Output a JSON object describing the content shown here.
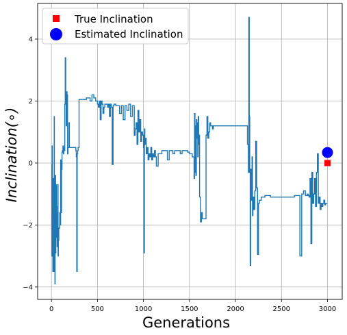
{
  "chart_data": {
    "type": "line",
    "xlabel": "Generations",
    "ylabel": "Inclination(∘)",
    "xlim": [
      -150,
      3160
    ],
    "ylim": [
      -4.4,
      5.15
    ],
    "xticks": [
      0,
      500,
      1000,
      1500,
      2000,
      2500,
      3000
    ],
    "yticks": [
      -4,
      -2,
      0,
      2,
      4
    ],
    "grid": true,
    "legend_position": "top-left",
    "legend": [
      {
        "label": "True Inclination",
        "marker": "square",
        "color": "#ff0000"
      },
      {
        "label": "Estimated Inclination",
        "marker": "circle",
        "color": "#0000ff"
      }
    ],
    "series": [
      {
        "color": "#1f77b4",
        "x": [
          0,
          5,
          8,
          10,
          12,
          15,
          18,
          20,
          22,
          25,
          28,
          30,
          32,
          35,
          38,
          40,
          42,
          45,
          48,
          50,
          52,
          55,
          58,
          60,
          62,
          65,
          68,
          70,
          72,
          75,
          78,
          80,
          85,
          90,
          95,
          100,
          105,
          110,
          115,
          120,
          125,
          130,
          135,
          140,
          145,
          150,
          155,
          160,
          165,
          170,
          175,
          180,
          190,
          195,
          200,
          205,
          210,
          215,
          220,
          225,
          230,
          235,
          240,
          245,
          250,
          255,
          260,
          265,
          270,
          275,
          280,
          285,
          290,
          300,
          320,
          330,
          335,
          340,
          350,
          360,
          380,
          400,
          420,
          440,
          460,
          480,
          500,
          510,
          520,
          530,
          540,
          550,
          560,
          570,
          580,
          600,
          610,
          620,
          630,
          640,
          650,
          660,
          670,
          680,
          700,
          720,
          740,
          760,
          780,
          800,
          820,
          840,
          860,
          880,
          900,
          910,
          920,
          930,
          940,
          950,
          960,
          970,
          980,
          990,
          1000,
          1005,
          1010,
          1015,
          1020,
          1030,
          1040,
          1050,
          1060,
          1070,
          1080,
          1090,
          1100,
          1110,
          1120,
          1130,
          1140,
          1160,
          1180,
          1200,
          1220,
          1240,
          1260,
          1280,
          1300,
          1320,
          1340,
          1360,
          1380,
          1400,
          1420,
          1440,
          1460,
          1480,
          1500,
          1520,
          1530,
          1540,
          1545,
          1550,
          1555,
          1560,
          1565,
          1570,
          1575,
          1580,
          1585,
          1590,
          1595,
          1600,
          1605,
          1610,
          1620,
          1630,
          1640,
          1650,
          1660,
          1670,
          1680,
          1690,
          1700,
          1710,
          1720,
          1730,
          1740,
          1750,
          1760,
          1780,
          1800,
          1820,
          1840,
          1860,
          1880,
          1900,
          1920,
          1940,
          1960,
          1980,
          2000,
          2020,
          2040,
          2060,
          2080,
          2100,
          2110,
          2120,
          2130,
          2140,
          2145,
          2150,
          2155,
          2160,
          2165,
          2170,
          2175,
          2180,
          2185,
          2190,
          2200,
          2210,
          2220,
          2230,
          2240,
          2250,
          2260,
          2270,
          2280,
          2290,
          2300,
          2320,
          2340,
          2360,
          2380,
          2400,
          2420,
          2440,
          2460,
          2480,
          2500,
          2520,
          2540,
          2560,
          2580,
          2600,
          2620,
          2640,
          2660,
          2680,
          2700,
          2720,
          2740,
          2760,
          2780,
          2790,
          2800,
          2810,
          2820,
          2830,
          2840,
          2850,
          2860,
          2870,
          2880,
          2890,
          2900,
          2910,
          2920,
          2930,
          2940,
          2950,
          2960,
          2970,
          2980,
          2990,
          3000
        ],
        "y": [
          -0.05,
          -3.0,
          0.55,
          -2.6,
          -1.3,
          -3.5,
          -1.0,
          -0.5,
          -2.8,
          -1.9,
          -3.5,
          1.5,
          -3.2,
          -1.9,
          -3.9,
          -2.0,
          -0.4,
          -2.9,
          -1.2,
          -2.4,
          -0.7,
          -1.4,
          -2.3,
          -2.0,
          -2.7,
          -1.6,
          -2.1,
          -0.7,
          -3.0,
          -2.2,
          -2.5,
          -2.1,
          -2.1,
          -1.6,
          -2.0,
          0.1,
          -1.6,
          -0.2,
          0.35,
          0.4,
          0.55,
          0.3,
          0.5,
          0.4,
          1.9,
          3.4,
          2.0,
          1.2,
          2.3,
          2.2,
          0.3,
          0.5,
          1.3,
          0.5,
          0.5,
          0.5,
          0.5,
          0.5,
          0.5,
          0.5,
          0.5,
          0.5,
          0.5,
          0.5,
          0.5,
          0.5,
          0.5,
          0.4,
          0.2,
          -3.5,
          0.3,
          0.4,
          0.5,
          2.05,
          2.05,
          2.05,
          2.05,
          2.05,
          2.05,
          2.05,
          2.1,
          2.1,
          2.0,
          2.2,
          2.1,
          2.0,
          1.9,
          1.8,
          2.0,
          1.4,
          2.0,
          1.9,
          1.6,
          1.8,
          1.9,
          1.9,
          1.8,
          1.9,
          1.5,
          1.9,
          1.8,
          -0.05,
          1.85,
          1.9,
          1.85,
          1.85,
          1.6,
          1.85,
          1.4,
          1.85,
          1.7,
          1.9,
          1.5,
          1.85,
          0.9,
          1.1,
          1.3,
          0.6,
          1.7,
          1.0,
          1.4,
          0.7,
          1.0,
          0.9,
          0.5,
          -2.9,
          1.1,
          0.6,
          0.8,
          0.3,
          0.5,
          0.1,
          0.3,
          0.2,
          0.5,
          0.1,
          0.3,
          0.2,
          0.4,
          0.2,
          -0.1,
          0.3,
          0.3,
          0.4,
          0.4,
          0.4,
          0.1,
          0.4,
          0.4,
          0.3,
          0.4,
          0.4,
          0.4,
          0.3,
          0.4,
          0.4,
          0.4,
          0.35,
          0.3,
          0.3,
          0.2,
          0.2,
          0.2,
          -0.5,
          1.6,
          -0.3,
          1.2,
          -0.4,
          1.4,
          0.8,
          1.3,
          0.2,
          1.5,
          0.6,
          0.9,
          -1.1,
          -1.9,
          -1.6,
          -1.8,
          -1.8,
          -1.8,
          -1.8,
          0.9,
          1.5,
          0.8,
          1.0,
          1.3,
          1.2,
          1.2,
          1.1,
          1.2,
          1.2,
          1.2,
          1.2,
          1.2,
          1.2,
          1.2,
          1.2,
          1.2,
          1.2,
          1.2,
          1.2,
          1.2,
          1.2,
          1.2,
          1.2,
          1.2,
          1.2,
          1.2,
          1.2,
          0.6,
          -0.3,
          4.7,
          1.5,
          -0.3,
          -3.3,
          -0.2,
          -1.2,
          -0.6,
          0.2,
          -1.7,
          -1.1,
          -1.5,
          -0.9,
          0.7,
          -0.8,
          -2.95,
          -1.3,
          -1.2,
          -1.2,
          -1.1,
          -1.1,
          -1.1,
          -1.05,
          -1.05,
          -1.05,
          -1.1,
          -1.1,
          -1.1,
          -1.1,
          -1.1,
          -1.1,
          -1.1,
          -1.1,
          -1.1,
          -1.1,
          -1.1,
          -1.1,
          -1.1,
          -1.05,
          -1.05,
          -1.05,
          -3.0,
          -1.0,
          -0.9,
          -1.05,
          -1.0,
          -1.05,
          -1.1,
          -0.5,
          -2.6,
          -0.3,
          -1.3,
          -1.0,
          -0.5,
          -1.4,
          -0.3,
          0.3,
          -1.3,
          -1.1,
          -1.5,
          -1.3,
          -1.4,
          -1.3,
          -1.2,
          -1.35,
          -1.3,
          -1.3,
          -1.3
        ]
      }
    ],
    "true_inclination": {
      "x": 3000,
      "y": 0.0
    },
    "estimated_inclination": {
      "x": 3000,
      "y": 0.34
    }
  }
}
